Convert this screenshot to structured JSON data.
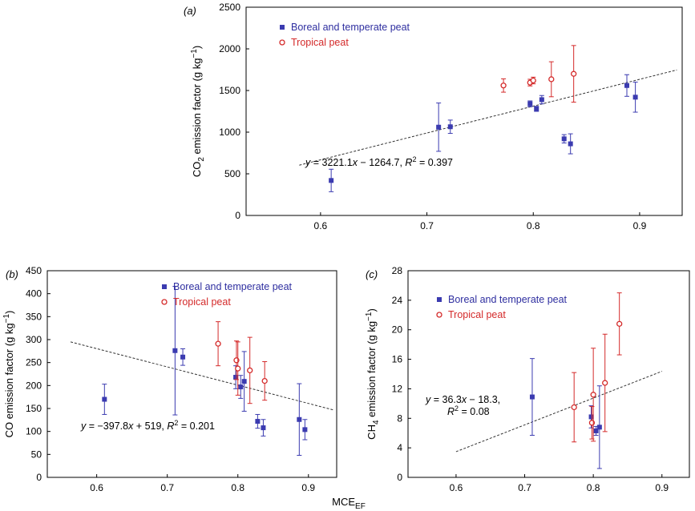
{
  "colors": {
    "boreal": "#3b3bb0",
    "tropical": "#d42a2a",
    "trend": "#333333"
  },
  "shared_xlabel": {
    "main": "MCE",
    "sub": "EF"
  },
  "chart_data": [
    {
      "id": "a",
      "type": "scatter",
      "panel_label": "(a)",
      "ylabel": {
        "pre": "CO",
        "sub": "2",
        "post": " emission factor (g kg",
        "sup": "−1",
        "end": ")"
      },
      "xlim": [
        0.53,
        0.94
      ],
      "ylim": [
        0,
        2500
      ],
      "xticks": [
        0.6,
        0.7,
        0.8,
        0.9
      ],
      "xtick_labels": [
        "0.6",
        "0.7",
        "0.8",
        "0.9"
      ],
      "yticks": [
        0,
        500,
        1000,
        1500,
        2000,
        2500
      ],
      "ytick_labels": [
        "0",
        "500",
        "1000",
        "1500",
        "2000",
        "2500"
      ],
      "legend": [
        "Boreal and temperate peat",
        "Tropical peat"
      ],
      "equation": {
        "lhs": "y",
        "mid": " = 3221.1",
        "x": "x",
        "rest": " − 1264.7, ",
        "r": "R",
        "sup": "2",
        "tail": " = 0.397"
      },
      "trendline": {
        "slope": 3221.1,
        "intercept": -1264.7,
        "x_range": [
          0.58,
          0.935
        ]
      },
      "series": [
        {
          "name": "Boreal and temperate peat",
          "marker": "square",
          "points": [
            {
              "x": 0.61,
              "y": 420,
              "err": 135
            },
            {
              "x": 0.711,
              "y": 1060,
              "err": 290
            },
            {
              "x": 0.722,
              "y": 1065,
              "err": 80
            },
            {
              "x": 0.797,
              "y": 1340,
              "err": 35
            },
            {
              "x": 0.803,
              "y": 1280,
              "err": 30
            },
            {
              "x": 0.808,
              "y": 1390,
              "err": 50
            },
            {
              "x": 0.829,
              "y": 920,
              "err": 50
            },
            {
              "x": 0.835,
              "y": 860,
              "err": 120
            },
            {
              "x": 0.888,
              "y": 1560,
              "err": 130
            },
            {
              "x": 0.896,
              "y": 1420,
              "err": 180
            }
          ]
        },
        {
          "name": "Tropical peat",
          "marker": "circle",
          "points": [
            {
              "x": 0.772,
              "y": 1560,
              "err": 80
            },
            {
              "x": 0.797,
              "y": 1595,
              "err": 40
            },
            {
              "x": 0.8,
              "y": 1620,
              "err": 40
            },
            {
              "x": 0.817,
              "y": 1635,
              "err": 210
            },
            {
              "x": 0.838,
              "y": 1700,
              "err": 340
            }
          ]
        }
      ]
    },
    {
      "id": "b",
      "type": "scatter",
      "panel_label": "(b)",
      "ylabel": {
        "pre": "CO emission factor (g kg",
        "sub": "",
        "post": "",
        "sup": "−1",
        "end": ")"
      },
      "xlim": [
        0.53,
        0.94
      ],
      "ylim": [
        0,
        450
      ],
      "xticks": [
        0.6,
        0.7,
        0.8,
        0.9
      ],
      "xtick_labels": [
        "0.6",
        "0.7",
        "0.8",
        "0.9"
      ],
      "yticks": [
        0,
        50,
        100,
        150,
        200,
        250,
        300,
        350,
        400,
        450
      ],
      "ytick_labels": [
        "0",
        "50",
        "100",
        "150",
        "200",
        "250",
        "300",
        "350",
        "400",
        "450"
      ],
      "legend": [
        "Boreal and temperate peat",
        "Tropical peat"
      ],
      "equation": {
        "lhs": "y",
        "mid": " = −397.8",
        "x": "x",
        "rest": " + 519, ",
        "r": "R",
        "sup": "2",
        "tail": " = 0.201"
      },
      "trendline": {
        "slope": -397.8,
        "intercept": 519,
        "x_range": [
          0.563,
          0.935
        ]
      },
      "series": [
        {
          "name": "Boreal and temperate peat",
          "marker": "square",
          "points": [
            {
              "x": 0.611,
              "y": 170,
              "err": 33
            },
            {
              "x": 0.711,
              "y": 276,
              "err": 140
            },
            {
              "x": 0.722,
              "y": 262,
              "err": 18
            },
            {
              "x": 0.797,
              "y": 218,
              "err": 25
            },
            {
              "x": 0.804,
              "y": 197,
              "err": 25
            },
            {
              "x": 0.809,
              "y": 209,
              "err": 65
            },
            {
              "x": 0.828,
              "y": 122,
              "err": 15
            },
            {
              "x": 0.836,
              "y": 108,
              "err": 18
            },
            {
              "x": 0.887,
              "y": 126,
              "err": 78
            },
            {
              "x": 0.895,
              "y": 104,
              "err": 22
            }
          ]
        },
        {
          "name": "Tropical peat",
          "marker": "circle",
          "points": [
            {
              "x": 0.772,
              "y": 291,
              "err": 48
            },
            {
              "x": 0.798,
              "y": 255,
              "err": 42
            },
            {
              "x": 0.8,
              "y": 237,
              "err": 58
            },
            {
              "x": 0.817,
              "y": 233,
              "err": 72
            },
            {
              "x": 0.838,
              "y": 210,
              "err": 42
            }
          ]
        }
      ]
    },
    {
      "id": "c",
      "type": "scatter",
      "panel_label": "(c)",
      "ylabel": {
        "pre": "CH",
        "sub": "4",
        "post": " emission factor (g kg",
        "sup": "−1",
        "end": ")"
      },
      "xlim": [
        0.53,
        0.94
      ],
      "ylim": [
        0,
        28
      ],
      "xticks": [
        0.6,
        0.7,
        0.8,
        0.9
      ],
      "xtick_labels": [
        "0.6",
        "0.7",
        "0.8",
        "0.9"
      ],
      "yticks": [
        0,
        4,
        8,
        12,
        16,
        20,
        24,
        28
      ],
      "ytick_labels": [
        "0",
        "4",
        "8",
        "12",
        "16",
        "20",
        "24",
        "28"
      ],
      "legend": [
        "Boreal and temperate peat",
        "Tropical peat"
      ],
      "equation": {
        "lhs": "y",
        "mid": " = 36.3",
        "x": "x",
        "rest": " − 18.3,",
        "r": "R",
        "sup": "2",
        "tail": " = 0.08"
      },
      "trendline": {
        "slope": 36.3,
        "intercept": -18.3,
        "x_range": [
          0.6,
          0.9
        ]
      },
      "series": [
        {
          "name": "Boreal and temperate peat",
          "marker": "square",
          "points": [
            {
              "x": 0.711,
              "y": 10.9,
              "err": 5.2
            },
            {
              "x": 0.797,
              "y": 8.2,
              "err": 1.5
            },
            {
              "x": 0.804,
              "y": 6.3,
              "err": 0.6
            },
            {
              "x": 0.809,
              "y": 6.8,
              "err": 5.6
            }
          ]
        },
        {
          "name": "Tropical peat",
          "marker": "circle",
          "points": [
            {
              "x": 0.772,
              "y": 9.5,
              "err": 4.7
            },
            {
              "x": 0.798,
              "y": 7.4,
              "err": 2.2
            },
            {
              "x": 0.8,
              "y": 11.2,
              "err": 6.3
            },
            {
              "x": 0.817,
              "y": 12.8,
              "err": 6.6
            },
            {
              "x": 0.838,
              "y": 20.8,
              "err": 4.2
            }
          ]
        }
      ]
    }
  ]
}
